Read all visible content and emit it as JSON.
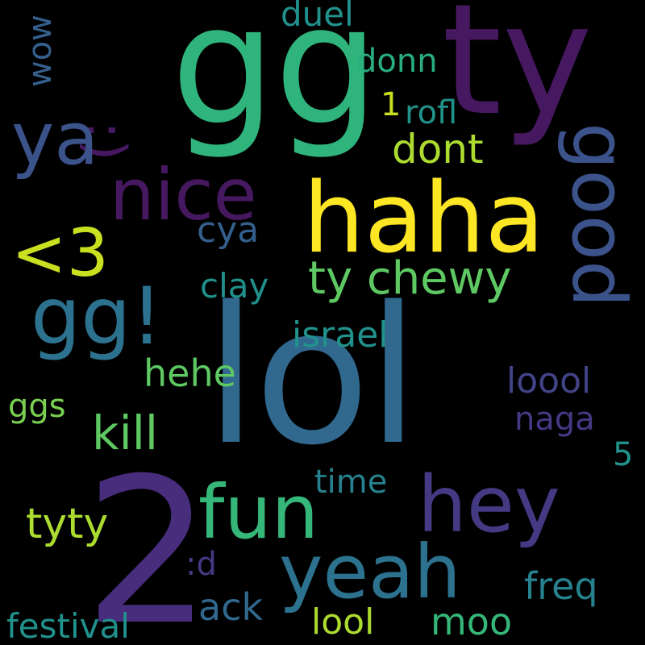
{
  "words": {
    "lol": "lol",
    "gg": "gg",
    "ty": "ty",
    "two": "2",
    "haha": "haha",
    "nice": "nice",
    "ya": "ya",
    "gg_excl": "gg!",
    "heart": "<3",
    "good": "good",
    "hey": "hey",
    "fun": "fun",
    "yeah": "yeah",
    "smiley": ":)",
    "ty_chewy": "ty chewy",
    "dont": "dont",
    "kill": "kill",
    "israel": "israel",
    "hehe": "hehe",
    "clay": "clay",
    "cya": "cya",
    "loool": "loool",
    "naga": "naga",
    "tyty": "tyty",
    "time": "time",
    "festival": "festival",
    "lool": "lool",
    "moo": "moo",
    "ack": "ack",
    "freq": "freq",
    "duel": "duel",
    "donn": "donn",
    "wow": "wow",
    "one": "1",
    "rofl": "rofl",
    "ggs": "ggs",
    "five": "5",
    "colon_d": ":d"
  }
}
